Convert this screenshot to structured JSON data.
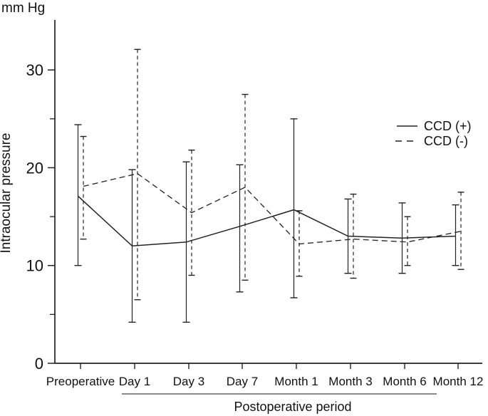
{
  "unit_label": "mm Hg",
  "y_axis_label": "Intraocular pressure",
  "x_axis_title": "Postoperative period",
  "legend": {
    "items": [
      {
        "label": "CCD (+)",
        "style": "solid"
      },
      {
        "label": "CCD (-)",
        "style": "dashed"
      }
    ],
    "position": "upper right"
  },
  "colors": {
    "line": "#222222",
    "text": "#000000",
    "background": "#ffffff"
  },
  "chart_data": {
    "type": "line",
    "title": "",
    "unit_label": "mm Hg",
    "ylabel": "Intraocular pressure",
    "xlabel": "Postoperative period",
    "categories": [
      "Preoperative",
      "Day 1",
      "Day 3",
      "Day 7",
      "Month 1",
      "Month 3",
      "Month 6",
      "Month 12"
    ],
    "y_ticks_major": [
      0,
      10,
      20,
      30
    ],
    "y_tick_labels": [
      "0",
      "10",
      "20",
      "30"
    ],
    "y_ticks_minor": [
      5,
      15,
      25
    ],
    "ylim": [
      0,
      35
    ],
    "grid": false,
    "error_bars": true,
    "legend_position": "upper right",
    "series": [
      {
        "name": "CCD (+)",
        "style": "solid",
        "values": [
          17.1,
          12.0,
          12.4,
          14.0,
          15.7,
          13.0,
          12.8,
          13.0
        ],
        "err_low": [
          10.0,
          4.2,
          4.2,
          7.3,
          6.7,
          9.2,
          9.2,
          10.0
        ],
        "err_high": [
          24.4,
          19.8,
          20.6,
          20.3,
          25.0,
          16.8,
          16.4,
          16.2
        ]
      },
      {
        "name": "CCD (-)",
        "style": "dashed",
        "values": [
          18.1,
          19.4,
          15.4,
          18.0,
          12.2,
          12.7,
          12.4,
          13.5
        ],
        "err_low": [
          12.7,
          6.5,
          9.0,
          8.5,
          8.9,
          8.7,
          10.0,
          9.6
        ],
        "err_high": [
          23.2,
          32.1,
          21.8,
          27.5,
          15.6,
          17.3,
          15.0,
          17.5
        ]
      }
    ],
    "annotations": {
      "categories_underline": "Day 1 through Month 12 underlined and labeled Postoperative period"
    }
  }
}
